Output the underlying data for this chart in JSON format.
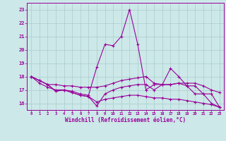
{
  "title": "",
  "xlabel": "Windchill (Refroidissement éolien,°C)",
  "ylabel": "",
  "xlim": [
    -0.5,
    23.5
  ],
  "ylim": [
    15.5,
    23.5
  ],
  "xticks": [
    0,
    1,
    2,
    3,
    4,
    5,
    6,
    7,
    8,
    9,
    10,
    11,
    12,
    13,
    14,
    15,
    16,
    17,
    18,
    19,
    20,
    21,
    22,
    23
  ],
  "yticks": [
    16,
    17,
    18,
    19,
    20,
    21,
    22,
    23
  ],
  "background_color": "#cce8e8",
  "grid_color": "#aacccc",
  "line_color": "#990099",
  "line1_x": [
    0,
    1,
    2,
    3,
    4,
    5,
    6,
    7,
    8,
    9,
    10,
    11,
    12,
    13,
    14,
    15,
    16,
    17,
    18,
    19,
    20,
    21,
    22,
    23
  ],
  "line1": [
    18.0,
    17.7,
    17.4,
    16.9,
    17.0,
    16.9,
    16.7,
    16.6,
    18.7,
    20.4,
    20.3,
    21.0,
    23.0,
    20.4,
    17.0,
    17.4,
    17.4,
    18.6,
    18.0,
    17.3,
    16.7,
    16.7,
    16.0,
    15.7
  ],
  "line2": [
    18.0,
    17.7,
    17.4,
    17.4,
    17.3,
    17.3,
    17.2,
    17.2,
    17.2,
    17.3,
    17.5,
    17.7,
    17.8,
    17.9,
    18.0,
    17.5,
    17.4,
    17.4,
    17.5,
    17.5,
    17.5,
    17.3,
    17.0,
    16.8
  ],
  "line3": [
    18.0,
    17.7,
    17.4,
    16.9,
    17.0,
    16.8,
    16.6,
    16.5,
    15.8,
    16.7,
    17.0,
    17.2,
    17.3,
    17.4,
    17.4,
    17.0,
    17.4,
    17.4,
    17.5,
    17.3,
    17.3,
    16.7,
    16.7,
    15.7
  ],
  "line4": [
    18.0,
    17.5,
    17.2,
    17.0,
    17.0,
    16.8,
    16.6,
    16.5,
    16.1,
    16.3,
    16.4,
    16.5,
    16.6,
    16.6,
    16.5,
    16.4,
    16.4,
    16.3,
    16.3,
    16.2,
    16.1,
    16.0,
    15.9,
    15.7
  ]
}
